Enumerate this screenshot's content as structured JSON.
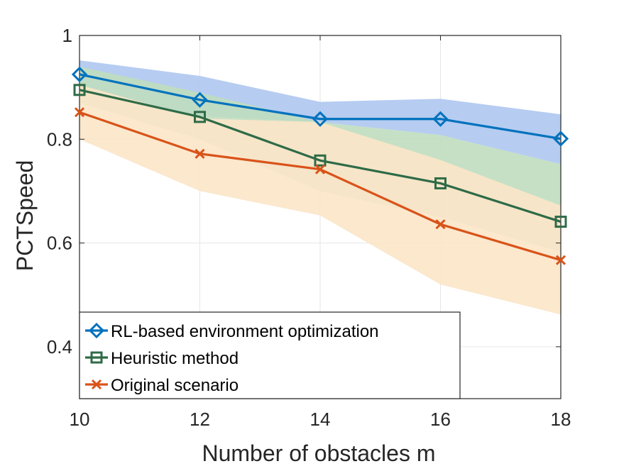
{
  "chart_data": {
    "type": "line",
    "title": "",
    "xlabel": "Number of obstacles m",
    "ylabel": "PCTSpeed",
    "x": [
      10,
      12,
      14,
      16,
      18
    ],
    "xlim": [
      10,
      18
    ],
    "ylim": [
      0.3,
      1.0
    ],
    "xticks": [
      10,
      12,
      14,
      16,
      18
    ],
    "xtick_labels": [
      "10",
      "12",
      "14",
      "16",
      "18"
    ],
    "yticks": [
      0.4,
      0.6,
      0.8,
      1.0
    ],
    "ytick_labels": [
      "0.4",
      "0.6",
      "0.8",
      "1"
    ],
    "grid": true,
    "legend_position": "bottom-left",
    "series": [
      {
        "name": "RL-based environment optimization",
        "color": "#0072BD",
        "band_color": "#aec6ef",
        "marker": "diamond",
        "values": [
          0.925,
          0.876,
          0.839,
          0.839,
          0.801
        ],
        "band_upper": [
          0.952,
          0.922,
          0.872,
          0.878,
          0.848
        ],
        "band_lower": [
          0.89,
          0.845,
          0.833,
          0.808,
          0.752
        ]
      },
      {
        "name": "Heuristic method",
        "color": "#2E6B47",
        "band_color": "#bfddbf",
        "marker": "square",
        "values": [
          0.895,
          0.843,
          0.759,
          0.715,
          0.641
        ],
        "band_upper": [
          0.94,
          0.89,
          0.833,
          0.808,
          0.752
        ],
        "band_lower": [
          0.87,
          0.8,
          0.7,
          0.65,
          0.583
        ]
      },
      {
        "name": "Original scenario",
        "color": "#D95319",
        "band_color": "#fbe5c8",
        "marker": "x",
        "values": [
          0.852,
          0.772,
          0.742,
          0.636,
          0.567
        ],
        "band_upper": [
          0.905,
          0.84,
          0.833,
          0.76,
          0.672
        ],
        "band_lower": [
          0.8,
          0.7,
          0.653,
          0.52,
          0.462
        ]
      }
    ]
  }
}
